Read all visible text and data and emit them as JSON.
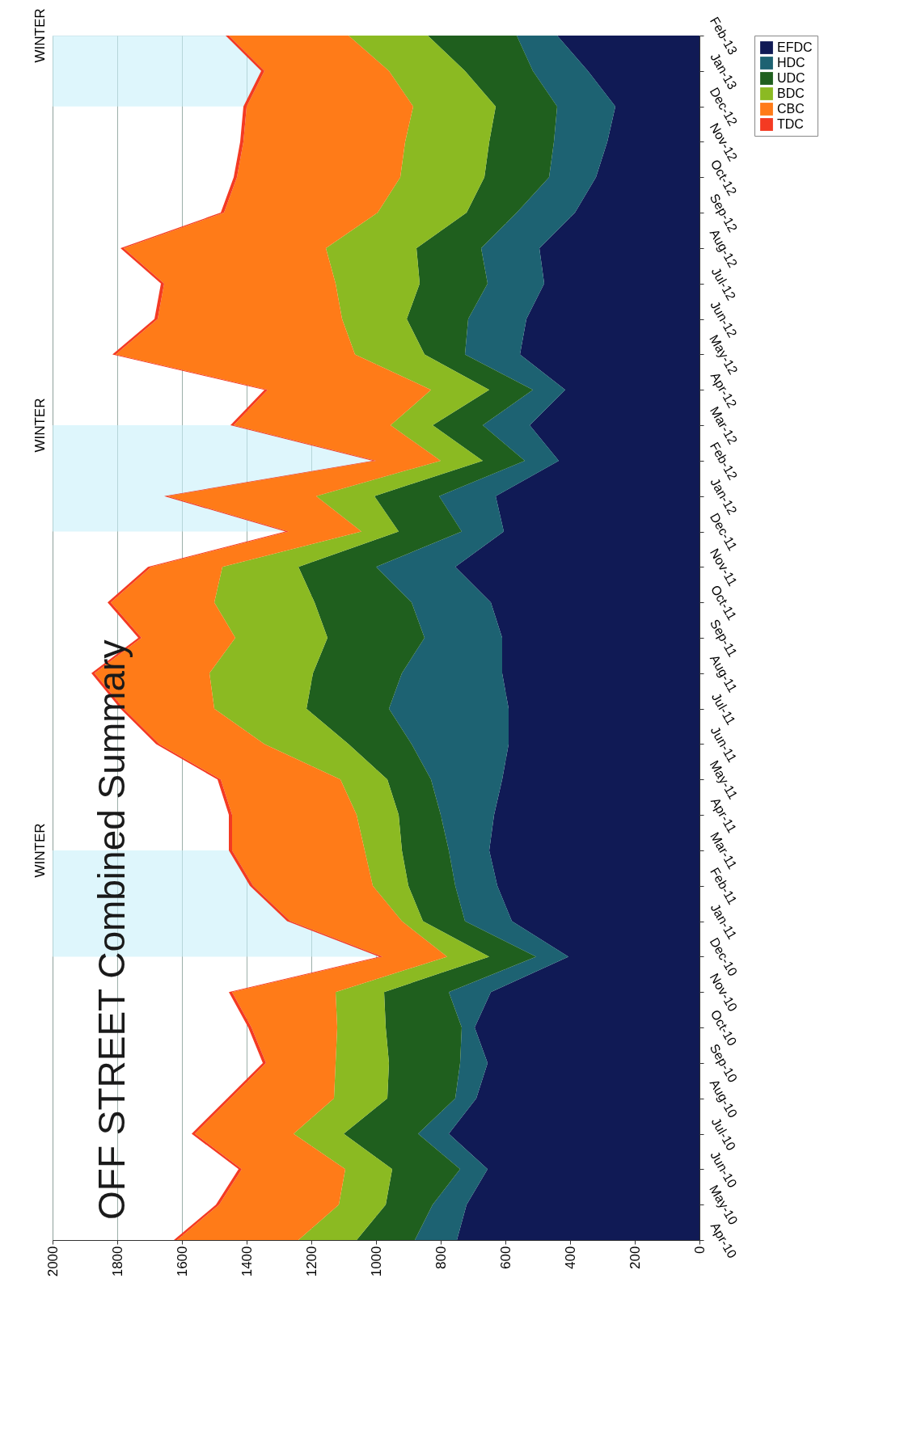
{
  "chart_data": {
    "type": "area",
    "title": "OFF STREET Combined Summary",
    "stacked": true,
    "orientation": "horizontal",
    "categories": [
      "Feb-13",
      "Jan-13",
      "Dec-12",
      "Nov-12",
      "Oct-12",
      "Sep-12",
      "Aug-12",
      "Jul-12",
      "Jun-12",
      "May-12",
      "Apr-12",
      "Mar-12",
      "Feb-12",
      "Jan-12",
      "Dec-11",
      "Nov-11",
      "Oct-11",
      "Sep-11",
      "Aug-11",
      "Jul-11",
      "Jun-11",
      "May-11",
      "Apr-11",
      "Mar-11",
      "Feb-11",
      "Jan-11",
      "Dec-10",
      "Nov-10",
      "Oct-10",
      "Sep-10",
      "Aug-10",
      "Jul-10",
      "Jun-10",
      "May-10",
      "Apr-10"
    ],
    "series": [
      {
        "name": "EFDC",
        "color": "#101a55",
        "values": [
          440,
          345,
          260,
          285,
          320,
          385,
          495,
          480,
          535,
          555,
          415,
          525,
          435,
          630,
          605,
          755,
          645,
          610,
          610,
          590,
          590,
          610,
          635,
          650,
          625,
          580,
          405,
          645,
          695,
          655,
          690,
          775,
          655,
          720,
          750
        ]
      },
      {
        "name": "HDC",
        "color": "#1d6272",
        "values": [
          125,
          170,
          180,
          165,
          145,
          180,
          180,
          175,
          180,
          170,
          100,
          145,
          105,
          175,
          130,
          245,
          245,
          240,
          310,
          370,
          300,
          220,
          165,
          125,
          130,
          145,
          100,
          130,
          40,
          85,
          65,
          95,
          85,
          105,
          130
        ]
      },
      {
        "name": "UDC",
        "color": "#1f5f1e",
        "values": [
          275,
          210,
          190,
          200,
          200,
          155,
          200,
          210,
          190,
          125,
          135,
          155,
          130,
          200,
          195,
          240,
          300,
          300,
          275,
          255,
          195,
          135,
          130,
          145,
          145,
          130,
          145,
          200,
          235,
          220,
          210,
          230,
          210,
          145,
          180
        ]
      },
      {
        "name": "BDC",
        "color": "#8bba22",
        "values": [
          245,
          235,
          255,
          260,
          260,
          275,
          280,
          260,
          200,
          215,
          180,
          130,
          130,
          180,
          115,
          235,
          310,
          285,
          320,
          285,
          260,
          145,
          130,
          115,
          110,
          65,
          130,
          150,
          150,
          165,
          165,
          155,
          145,
          145,
          180
        ]
      },
      {
        "name": "CBC",
        "color": "#ff7b18",
        "values": [
          370,
          385,
          515,
          500,
          505,
          475,
          625,
          530,
          570,
          740,
          505,
          485,
          200,
          460,
          225,
          220,
          320,
          290,
          355,
          280,
          325,
          370,
          385,
          410,
          370,
          345,
          200,
          320,
          265,
          215,
          320,
          305,
          320,
          370,
          375
        ]
      },
      {
        "name": "TDC",
        "color": "#f43a22",
        "values": [
          10,
          10,
          10,
          10,
          10,
          10,
          10,
          10,
          10,
          10,
          10,
          10,
          10,
          10,
          10,
          10,
          10,
          10,
          10,
          10,
          10,
          10,
          10,
          10,
          10,
          10,
          10,
          10,
          10,
          10,
          10,
          10,
          10,
          10,
          10
        ]
      }
    ],
    "xlim": [
      2000,
      0
    ],
    "xticks": [
      0,
      200,
      400,
      600,
      800,
      1000,
      1200,
      1400,
      1600,
      1800,
      2000
    ],
    "grid": "x",
    "legend": "right",
    "bands": [
      {
        "axis": "y",
        "from": "Feb-13",
        "to": "Dec-12",
        "label": "WINTER",
        "color": "#c8f0fa"
      },
      {
        "axis": "y",
        "from": "Mar-12",
        "to": "Dec-11",
        "label": "WINTER",
        "color": "#c8f0fa"
      },
      {
        "axis": "y",
        "from": "Mar-11",
        "to": "Dec-10",
        "label": "WINTER",
        "color": "#c8f0fa"
      }
    ]
  }
}
